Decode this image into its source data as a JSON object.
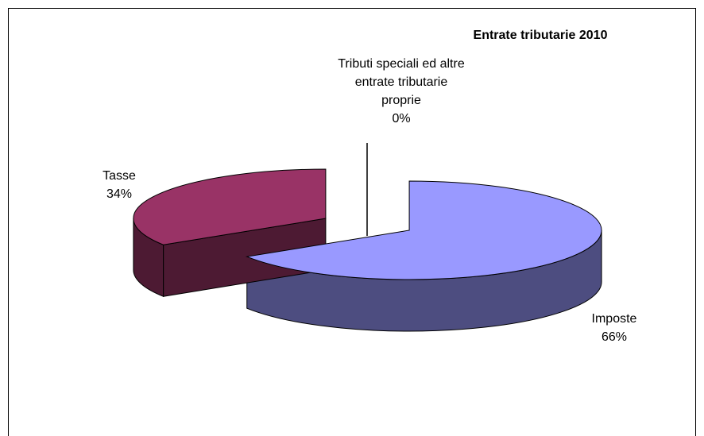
{
  "chart_data": {
    "type": "pie3d",
    "title": "Entrate tributarie 2010",
    "categories": [
      "Imposte",
      "Tasse",
      "Tributi speciali ed altre entrate tributarie proprie"
    ],
    "values": [
      66,
      34,
      0
    ],
    "value_labels": [
      "66%",
      "34%",
      "0%"
    ],
    "colors": [
      "#9999ff",
      "#993366",
      "#ffffcc"
    ],
    "side_colors": [
      "#4d4d80",
      "#4d1a33",
      "#808066"
    ]
  }
}
